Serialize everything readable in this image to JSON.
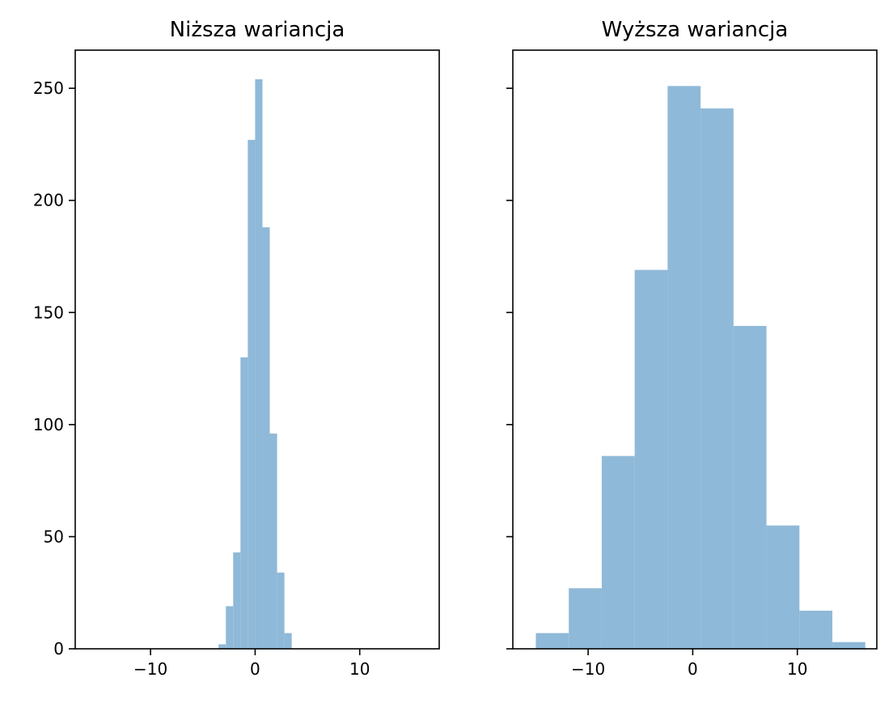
{
  "chart_data": [
    {
      "type": "bar",
      "title": "Niższa wariancja",
      "xlabel": "",
      "ylabel": "",
      "xlim": [
        -17.2,
        17.6
      ],
      "ylim": [
        0,
        267
      ],
      "xticks": [
        -10,
        0,
        10
      ],
      "xtick_labels": [
        "−10",
        "0",
        "10"
      ],
      "yticks": [
        0,
        50,
        100,
        150,
        200,
        250
      ],
      "ytick_labels": [
        "0",
        "50",
        "100",
        "150",
        "200",
        "250"
      ],
      "grid": false,
      "bar_color": "#8fb9d8",
      "bins": [
        {
          "x0": -3.5,
          "x1": -2.8,
          "value": 2
        },
        {
          "x0": -2.8,
          "x1": -2.1,
          "value": 19
        },
        {
          "x0": -2.1,
          "x1": -1.4,
          "value": 43
        },
        {
          "x0": -1.4,
          "x1": -0.7,
          "value": 130
        },
        {
          "x0": -0.7,
          "x1": 0.0,
          "value": 227
        },
        {
          "x0": 0.0,
          "x1": 0.7,
          "value": 254
        },
        {
          "x0": 0.7,
          "x1": 1.4,
          "value": 188
        },
        {
          "x0": 1.4,
          "x1": 2.1,
          "value": 96
        },
        {
          "x0": 2.1,
          "x1": 2.8,
          "value": 34
        },
        {
          "x0": 2.8,
          "x1": 3.5,
          "value": 7
        }
      ]
    },
    {
      "type": "bar",
      "title": "Wyższa wariancja",
      "xlabel": "",
      "ylabel": "",
      "xlim": [
        -17.2,
        17.6
      ],
      "ylim": [
        0,
        267
      ],
      "xticks": [
        -10,
        0,
        10
      ],
      "xtick_labels": [
        "−10",
        "0",
        "10"
      ],
      "yticks": [
        0,
        50,
        100,
        150,
        200,
        250
      ],
      "ytick_labels": [],
      "grid": false,
      "bar_color": "#8fb9d8",
      "bins": [
        {
          "x0": -15.0,
          "x1": -11.85,
          "value": 7
        },
        {
          "x0": -11.85,
          "x1": -8.7,
          "value": 27
        },
        {
          "x0": -8.7,
          "x1": -5.55,
          "value": 86
        },
        {
          "x0": -5.55,
          "x1": -2.4,
          "value": 169
        },
        {
          "x0": -2.4,
          "x1": 0.75,
          "value": 251
        },
        {
          "x0": 0.75,
          "x1": 3.9,
          "value": 241
        },
        {
          "x0": 3.9,
          "x1": 7.05,
          "value": 144
        },
        {
          "x0": 7.05,
          "x1": 10.2,
          "value": 55
        },
        {
          "x0": 10.2,
          "x1": 13.35,
          "value": 17
        },
        {
          "x0": 13.35,
          "x1": 16.5,
          "value": 3
        }
      ]
    }
  ]
}
